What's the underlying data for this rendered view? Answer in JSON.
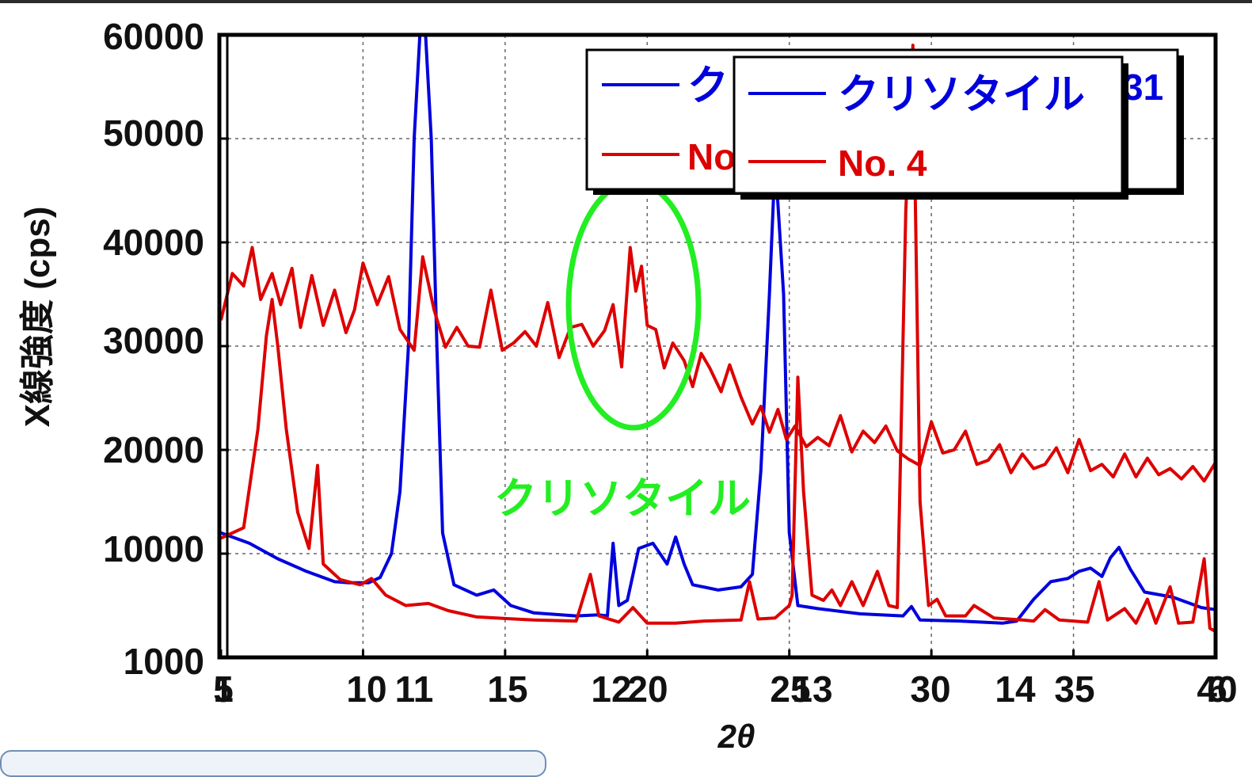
{
  "chart_data": {
    "type": "line",
    "title": "",
    "xlabel": "2θ",
    "ylabel": "X線強度 (cps)",
    "xlim": [
      5,
      40
    ],
    "ylim": [
      0,
      60000
    ],
    "xticks": [
      "5",
      "10",
      "15",
      "20",
      "25",
      "30",
      "35",
      "40"
    ],
    "yticks": [
      "1000",
      "10000",
      "30000",
      "50000"
    ],
    "overlap_x_labels": [
      "1",
      "11",
      "12",
      "13",
      "14",
      "6"
    ],
    "overlap_y_labels": [
      "60000",
      "40000",
      "20000"
    ],
    "grid": true,
    "legend_position": "top-right",
    "legend_back": {
      "labels": [
        "クリソタイル",
        "No. 4"
      ],
      "extra": "31"
    },
    "annotation": {
      "text": "クリソタイル",
      "center_x": 19.4,
      "center_y": 33000,
      "color": "#22ee22"
    },
    "series": [
      {
        "name": "クリソタイル",
        "color": "#0000dd",
        "points": [
          [
            5.0,
            12000
          ],
          [
            6.0,
            11000
          ],
          [
            7.0,
            9500
          ],
          [
            8.0,
            8300
          ],
          [
            9.0,
            7300
          ],
          [
            9.5,
            7200
          ],
          [
            10.2,
            7200
          ],
          [
            10.6,
            7700
          ],
          [
            11.0,
            10000
          ],
          [
            11.3,
            16000
          ],
          [
            11.6,
            30000
          ],
          [
            11.8,
            50000
          ],
          [
            12.0,
            60000
          ],
          [
            12.2,
            60000
          ],
          [
            12.4,
            50000
          ],
          [
            12.6,
            30000
          ],
          [
            12.8,
            12000
          ],
          [
            13.2,
            7000
          ],
          [
            14.0,
            6000
          ],
          [
            14.6,
            6500
          ],
          [
            15.2,
            5000
          ],
          [
            16.0,
            4300
          ],
          [
            17.5,
            4000
          ],
          [
            18.3,
            4100
          ],
          [
            18.6,
            4000
          ],
          [
            18.8,
            11000
          ],
          [
            19.0,
            5000
          ],
          [
            19.3,
            5500
          ],
          [
            19.7,
            10500
          ],
          [
            20.2,
            11000
          ],
          [
            20.7,
            9000
          ],
          [
            21.0,
            11600
          ],
          [
            21.3,
            9000
          ],
          [
            21.6,
            7000
          ],
          [
            22.5,
            6500
          ],
          [
            23.3,
            6800
          ],
          [
            23.7,
            8000
          ],
          [
            24.0,
            18000
          ],
          [
            24.3,
            35000
          ],
          [
            24.5,
            48000
          ],
          [
            24.8,
            35000
          ],
          [
            25.0,
            12000
          ],
          [
            25.3,
            5000
          ],
          [
            26.0,
            4700
          ],
          [
            27.5,
            4200
          ],
          [
            29.0,
            4000
          ],
          [
            29.3,
            4900
          ],
          [
            29.6,
            3600
          ],
          [
            31.0,
            3500
          ],
          [
            32.5,
            3300
          ],
          [
            33.0,
            3500
          ],
          [
            33.6,
            5600
          ],
          [
            34.2,
            7300
          ],
          [
            34.8,
            7600
          ],
          [
            35.2,
            8300
          ],
          [
            35.6,
            8600
          ],
          [
            36.0,
            7800
          ],
          [
            36.3,
            9600
          ],
          [
            36.6,
            10600
          ],
          [
            37.0,
            8500
          ],
          [
            37.5,
            6300
          ],
          [
            38.5,
            5800
          ],
          [
            39.5,
            4800
          ],
          [
            40.0,
            4600
          ]
        ]
      },
      {
        "name": "No. 4",
        "color": "#dd0000",
        "points": [
          [
            5.0,
            11500
          ],
          [
            5.8,
            12500
          ],
          [
            6.3,
            22000
          ],
          [
            6.6,
            31000
          ],
          [
            6.8,
            34500
          ],
          [
            7.0,
            30000
          ],
          [
            7.3,
            22000
          ],
          [
            7.7,
            14000
          ],
          [
            8.1,
            10500
          ],
          [
            8.4,
            18500
          ],
          [
            8.6,
            9000
          ],
          [
            9.2,
            7500
          ],
          [
            9.9,
            7000
          ],
          [
            10.3,
            7600
          ],
          [
            10.8,
            6000
          ],
          [
            11.5,
            5000
          ],
          [
            12.3,
            5200
          ],
          [
            13.0,
            4500
          ],
          [
            14.0,
            3900
          ],
          [
            16.0,
            3600
          ],
          [
            17.5,
            3500
          ],
          [
            18.0,
            8000
          ],
          [
            18.3,
            4000
          ],
          [
            19.0,
            3400
          ],
          [
            19.5,
            4800
          ],
          [
            20.0,
            3300
          ],
          [
            21.0,
            3300
          ],
          [
            22.0,
            3500
          ],
          [
            23.3,
            3600
          ],
          [
            23.6,
            7300
          ],
          [
            23.9,
            3700
          ],
          [
            24.5,
            3800
          ],
          [
            25.0,
            5000
          ],
          [
            25.1,
            6000
          ],
          [
            25.3,
            27000
          ],
          [
            25.5,
            16000
          ],
          [
            25.8,
            6000
          ],
          [
            26.2,
            5500
          ],
          [
            26.5,
            6500
          ],
          [
            26.8,
            5000
          ],
          [
            27.2,
            7300
          ],
          [
            27.6,
            5000
          ],
          [
            28.1,
            8300
          ],
          [
            28.5,
            5000
          ],
          [
            28.8,
            4800
          ],
          [
            29.1,
            43000
          ],
          [
            29.35,
            59000
          ],
          [
            29.6,
            15000
          ],
          [
            29.9,
            5000
          ],
          [
            30.2,
            5600
          ],
          [
            30.5,
            4000
          ],
          [
            31.2,
            4000
          ],
          [
            31.5,
            5000
          ],
          [
            32.2,
            3800
          ],
          [
            33.2,
            3600
          ],
          [
            33.6,
            3500
          ],
          [
            34.0,
            4600
          ],
          [
            34.5,
            3600
          ],
          [
            35.5,
            3400
          ],
          [
            35.9,
            7300
          ],
          [
            36.2,
            3600
          ],
          [
            36.8,
            4700
          ],
          [
            37.2,
            3300
          ],
          [
            37.6,
            5600
          ],
          [
            37.9,
            3300
          ],
          [
            38.4,
            6800
          ],
          [
            38.7,
            3300
          ],
          [
            39.2,
            3400
          ],
          [
            39.6,
            9500
          ],
          [
            39.8,
            2800
          ],
          [
            40.0,
            2500
          ]
        ]
      },
      {
        "name": "",
        "color": "#dd0000",
        "points": [
          [
            5.0,
            32500
          ],
          [
            5.4,
            37000
          ],
          [
            5.8,
            35800
          ],
          [
            6.1,
            39500
          ],
          [
            6.4,
            34500
          ],
          [
            6.8,
            37000
          ],
          [
            7.1,
            34000
          ],
          [
            7.5,
            37500
          ],
          [
            7.8,
            31800
          ],
          [
            8.2,
            36800
          ],
          [
            8.6,
            32000
          ],
          [
            9.0,
            35400
          ],
          [
            9.4,
            31300
          ],
          [
            9.7,
            33500
          ],
          [
            10.0,
            38000
          ],
          [
            10.5,
            34000
          ],
          [
            10.9,
            36700
          ],
          [
            11.3,
            31600
          ],
          [
            11.8,
            29600
          ],
          [
            12.1,
            38600
          ],
          [
            12.5,
            33500
          ],
          [
            12.9,
            29900
          ],
          [
            13.3,
            31800
          ],
          [
            13.7,
            30000
          ],
          [
            14.1,
            29900
          ],
          [
            14.5,
            35400
          ],
          [
            14.9,
            29600
          ],
          [
            15.3,
            30300
          ],
          [
            15.7,
            31400
          ],
          [
            16.1,
            30000
          ],
          [
            16.5,
            34200
          ],
          [
            16.9,
            28900
          ],
          [
            17.3,
            31800
          ],
          [
            17.7,
            32100
          ],
          [
            18.1,
            30000
          ],
          [
            18.5,
            31500
          ],
          [
            18.8,
            34000
          ],
          [
            19.1,
            28000
          ],
          [
            19.4,
            39500
          ],
          [
            19.6,
            35300
          ],
          [
            19.8,
            37700
          ],
          [
            20.0,
            32000
          ],
          [
            20.3,
            31600
          ],
          [
            20.6,
            27900
          ],
          [
            20.9,
            30300
          ],
          [
            21.3,
            28600
          ],
          [
            21.6,
            26100
          ],
          [
            21.9,
            29300
          ],
          [
            22.2,
            27900
          ],
          [
            22.6,
            25600
          ],
          [
            22.9,
            28200
          ],
          [
            23.3,
            25100
          ],
          [
            23.7,
            22500
          ],
          [
            24.0,
            24200
          ],
          [
            24.3,
            21700
          ],
          [
            24.6,
            23900
          ],
          [
            24.9,
            21000
          ],
          [
            25.2,
            22300
          ],
          [
            25.6,
            20300
          ],
          [
            26.0,
            21200
          ],
          [
            26.4,
            20400
          ],
          [
            26.8,
            23300
          ],
          [
            27.2,
            19800
          ],
          [
            27.6,
            21800
          ],
          [
            28.0,
            20700
          ],
          [
            28.4,
            22300
          ],
          [
            28.8,
            19900
          ],
          [
            29.2,
            19100
          ],
          [
            29.6,
            18500
          ],
          [
            30.0,
            22700
          ],
          [
            30.4,
            19700
          ],
          [
            30.8,
            20000
          ],
          [
            31.2,
            21800
          ],
          [
            31.6,
            18600
          ],
          [
            32.0,
            19000
          ],
          [
            32.4,
            20500
          ],
          [
            32.8,
            17800
          ],
          [
            33.2,
            19600
          ],
          [
            33.6,
            18200
          ],
          [
            34.0,
            18600
          ],
          [
            34.4,
            20200
          ],
          [
            34.8,
            17800
          ],
          [
            35.2,
            21000
          ],
          [
            35.6,
            18000
          ],
          [
            36.0,
            18600
          ],
          [
            36.4,
            17400
          ],
          [
            36.8,
            19600
          ],
          [
            37.2,
            17400
          ],
          [
            37.6,
            19200
          ],
          [
            38.0,
            17600
          ],
          [
            38.4,
            18200
          ],
          [
            38.8,
            17200
          ],
          [
            39.2,
            18400
          ],
          [
            39.6,
            17000
          ],
          [
            40.0,
            18800
          ]
        ]
      }
    ]
  }
}
